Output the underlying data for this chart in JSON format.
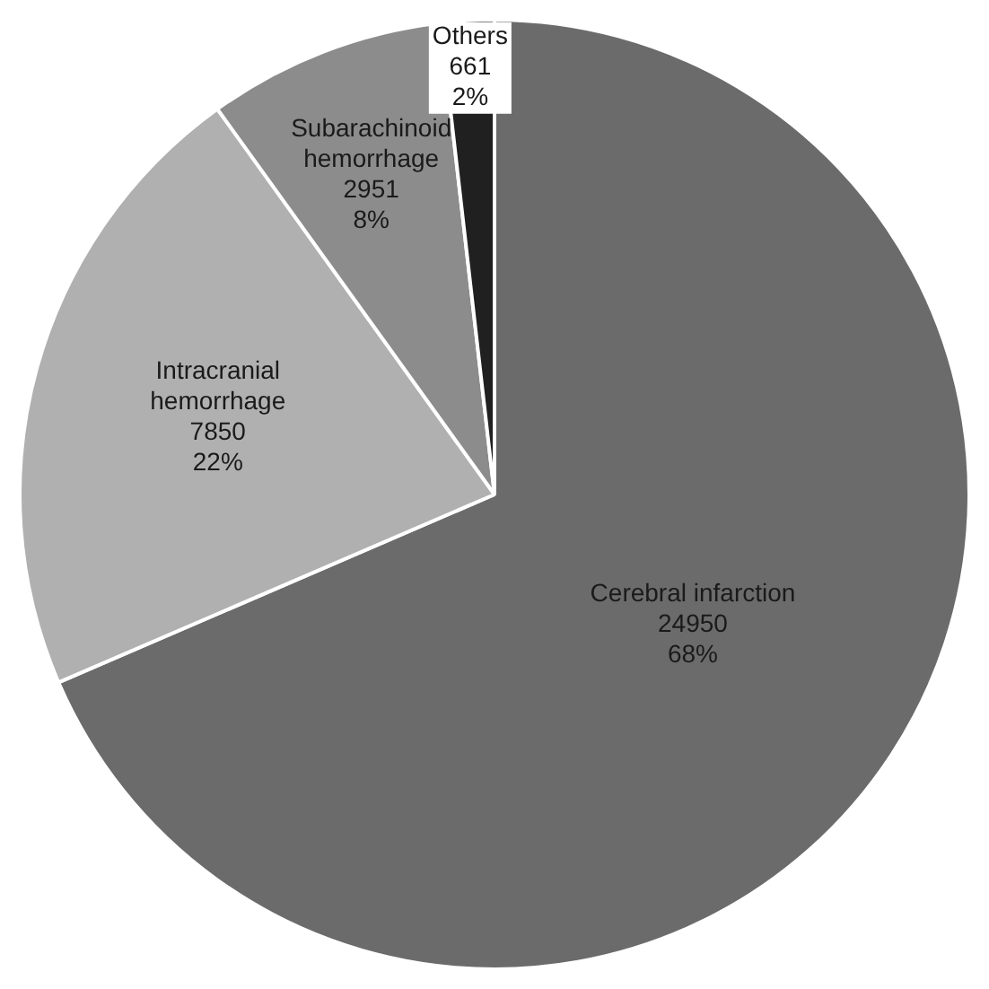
{
  "chart_data": {
    "type": "pie",
    "categories": [
      "Cerebral infarction",
      "Intracranial hemorrhage",
      "Subarachinoid hemorrhage",
      "Others"
    ],
    "values": [
      24950,
      7850,
      2951,
      661
    ],
    "colors": [
      "#6b6b6b",
      "#b0b0b0",
      "#8c8c8c",
      "#202020"
    ],
    "value_labels": [
      "24950\n68%",
      "7850\n22%",
      "2951\n8%",
      "661\n2%"
    ]
  }
}
